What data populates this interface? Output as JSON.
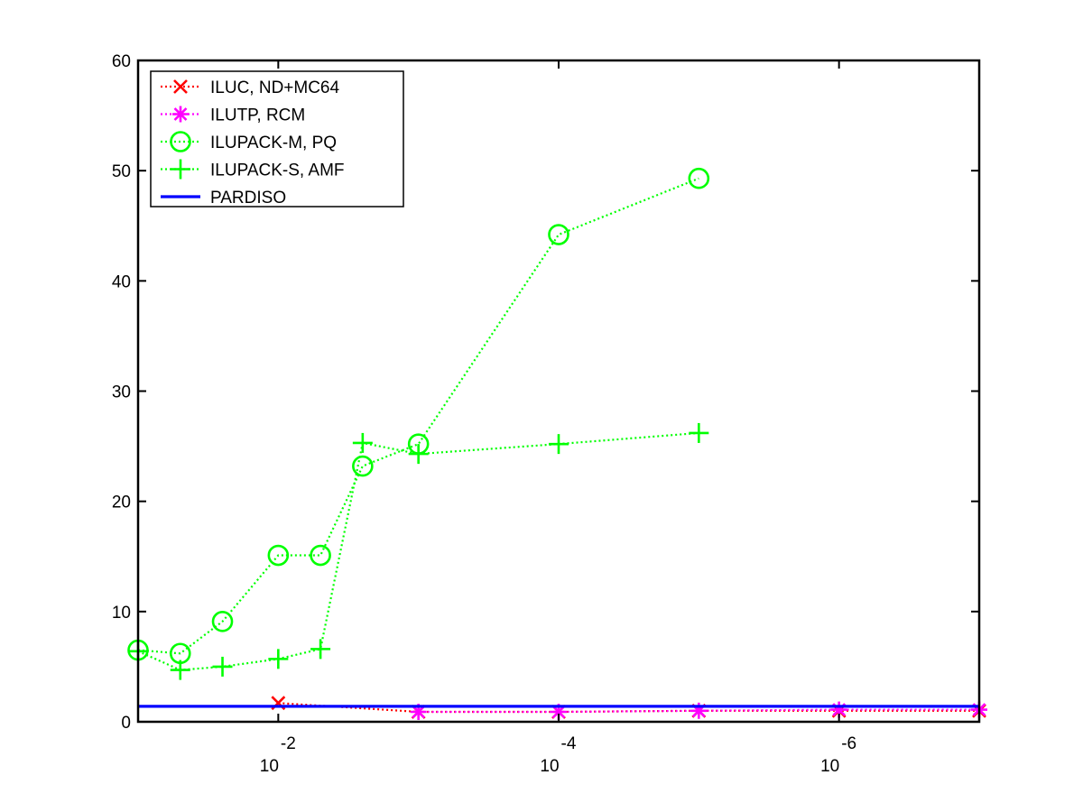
{
  "chart_data": {
    "type": "line",
    "xscale": "log",
    "xdirection": "reversed",
    "xlim": [
      0.1,
      1e-07
    ],
    "ylim": [
      0,
      60
    ],
    "yticks": [
      0,
      10,
      20,
      30,
      40,
      50,
      60
    ],
    "xticks": [
      {
        "value": 0.01,
        "base": "10",
        "exponent": "-2"
      },
      {
        "value": 0.0001,
        "base": "10",
        "exponent": "-4"
      },
      {
        "value": 1e-06,
        "base": "10",
        "exponent": "-6"
      }
    ],
    "legend_position": "top-left",
    "series": [
      {
        "name": "ILUC,  ND+MC64",
        "color": "#ff0000",
        "marker": "x",
        "linestyle": "dotted",
        "x": [
          0.01,
          0.001,
          0.0001,
          1e-05,
          1e-06,
          1e-07
        ],
        "y": [
          1.7,
          0.9,
          0.9,
          1.0,
          1.0,
          1.0
        ]
      },
      {
        "name": "ILUTP, RCM",
        "color": "#ff00ff",
        "marker": "asterisk",
        "linestyle": "dotted",
        "x": [
          0.001,
          0.0001,
          1e-05,
          1e-06,
          1e-07
        ],
        "y": [
          0.9,
          0.9,
          1.0,
          1.1,
          1.1
        ]
      },
      {
        "name": "ILUPACK-M, PQ",
        "color": "#00ff00",
        "marker": "circle",
        "linestyle": "dotted",
        "x": [
          0.1,
          0.05,
          0.025,
          0.01,
          0.005,
          0.0025,
          0.001,
          0.0001,
          1e-05
        ],
        "y": [
          6.5,
          6.2,
          9.1,
          15.1,
          15.1,
          23.2,
          25.2,
          44.2,
          49.3
        ]
      },
      {
        "name": "ILUPACK-S, AMF",
        "color": "#00ff00",
        "marker": "plus",
        "linestyle": "dotted",
        "x": [
          0.1,
          0.05,
          0.025,
          0.01,
          0.005,
          0.0025,
          0.001,
          0.0001,
          1e-05
        ],
        "y": [
          6.4,
          4.7,
          5.0,
          5.7,
          6.6,
          25.3,
          24.3,
          25.2,
          26.2
        ]
      },
      {
        "name": "PARDISO",
        "color": "#0000ff",
        "marker": "none",
        "linestyle": "solid",
        "x": [
          0.1,
          1e-07
        ],
        "y": [
          1.4,
          1.4
        ]
      }
    ]
  }
}
